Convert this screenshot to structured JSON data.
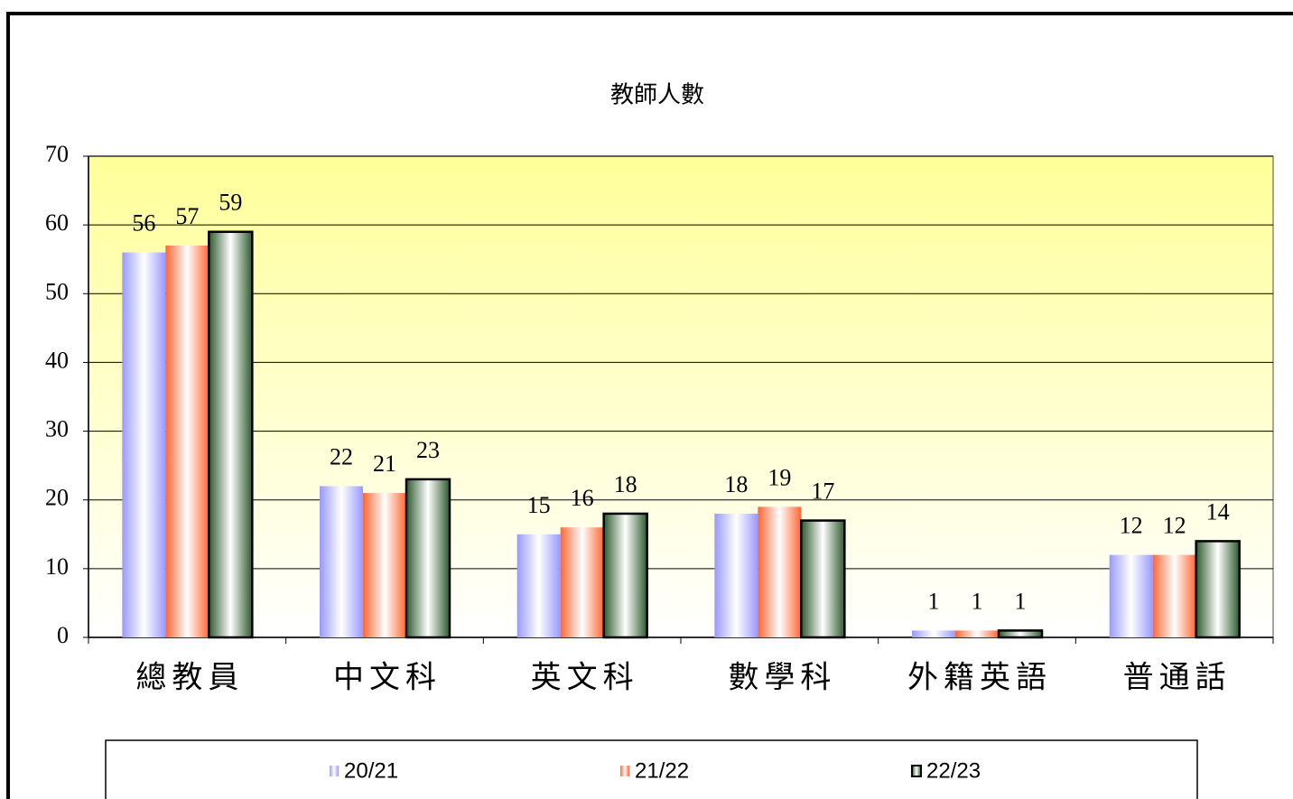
{
  "chart_data": {
    "type": "bar",
    "title": "教師人數",
    "categories": [
      "總教員",
      "中文科",
      "英文科",
      "數學科",
      "外籍英語",
      "普通話"
    ],
    "series": [
      {
        "name": "20/21",
        "color": "#9999ff",
        "values": [
          56,
          22,
          15,
          18,
          1,
          12
        ]
      },
      {
        "name": "21/22",
        "color": "#ff6633",
        "values": [
          57,
          21,
          16,
          19,
          1,
          12
        ]
      },
      {
        "name": "22/23",
        "color": "#2d5a2d",
        "values": [
          59,
          23,
          18,
          17,
          1,
          14
        ]
      }
    ],
    "ylim": [
      0,
      70
    ],
    "yticks": [
      0,
      10,
      20,
      30,
      40,
      50,
      60,
      70
    ],
    "grid": true
  }
}
